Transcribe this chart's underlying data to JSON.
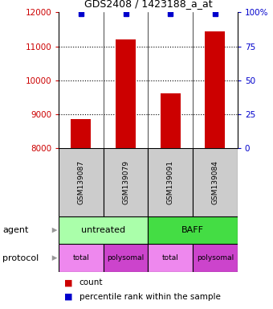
{
  "title": "GDS2408 / 1423188_a_at",
  "samples": [
    "GSM139087",
    "GSM139079",
    "GSM139091",
    "GSM139084"
  ],
  "counts": [
    8870,
    11200,
    9620,
    11450
  ],
  "percentile_ranks": [
    99,
    99,
    99,
    99
  ],
  "ylim_left": [
    8000,
    12000
  ],
  "ylim_right": [
    0,
    100
  ],
  "yticks_left": [
    8000,
    9000,
    10000,
    11000,
    12000
  ],
  "yticks_right": [
    0,
    25,
    50,
    75,
    100
  ],
  "bar_color": "#cc0000",
  "dot_color": "#0000cc",
  "agent_labels": [
    "untreated",
    "BAFF"
  ],
  "agent_colors": [
    "#aaffaa",
    "#44dd44"
  ],
  "protocol_labels": [
    "total",
    "polysomal",
    "total",
    "polysomal"
  ],
  "protocol_colors": [
    "#ee88ee",
    "#cc44cc",
    "#ee88ee",
    "#cc44cc"
  ],
  "sample_box_color": "#cccccc",
  "legend_count_color": "#cc0000",
  "legend_pct_color": "#0000cc",
  "arrow_color": "#999999"
}
